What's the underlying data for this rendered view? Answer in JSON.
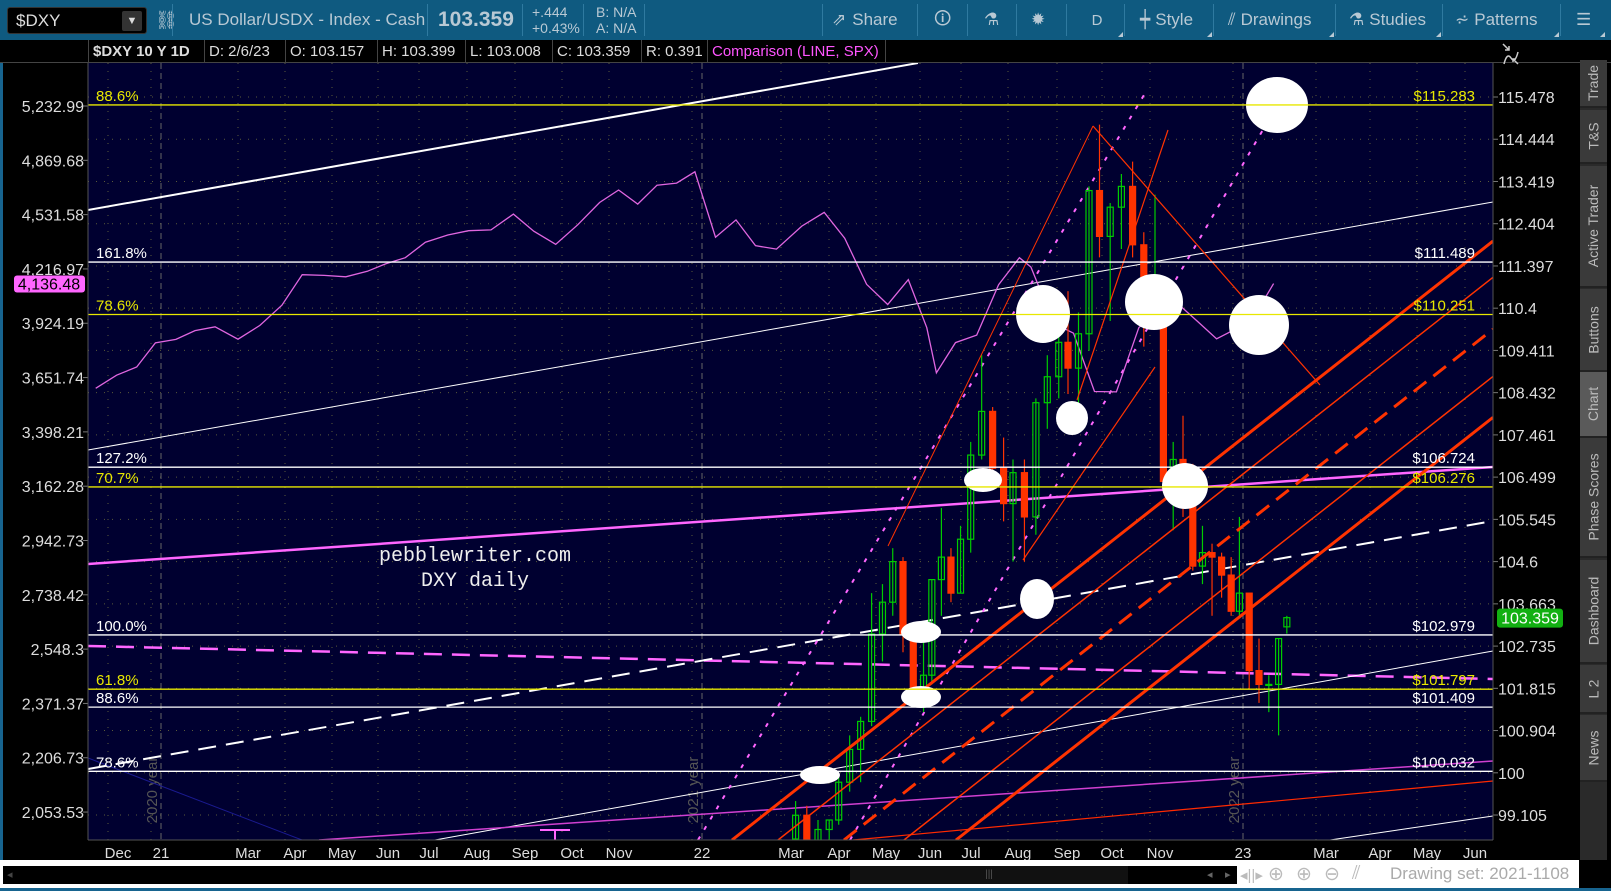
{
  "toolbar": {
    "symbol": "$DXY",
    "description": "US Dollar/USDX - Index - Cash",
    "last": "103.359",
    "change": "+.444",
    "change_pct": "+0.43%",
    "bid": "B: N/A",
    "ask": "A: N/A",
    "share": "Share",
    "period": "D",
    "style": "Style",
    "drawings": "Drawings",
    "studies": "Studies",
    "patterns": "Patterns"
  },
  "header": {
    "title": "$DXY 10 Y 1D",
    "date": "D: 2/6/23",
    "open": "O: 103.157",
    "high": "H: 103.399",
    "low": "L: 103.008",
    "close": "C: 103.359",
    "range": "R: 0.391",
    "comparison": "Comparison (LINE, SPX)"
  },
  "right_tabs": [
    "Trade",
    "T&S",
    "Active Trader",
    "Buttons",
    "Chart",
    "Phase Scores",
    "Dashboard",
    "L 2",
    "News"
  ],
  "selected_tab": "Chart",
  "bottom": {
    "drawing_set": "Drawing set: 2021-1108"
  },
  "colors": {
    "plot_bg": "#000030",
    "up": "#00cc00",
    "down": "#ff3300",
    "comparison": "#e066e0",
    "fib_yellow": "#e8e800",
    "fib_white": "#ffffff",
    "channel": "#ff3300",
    "last_price_badge": "#12b012",
    "comparison_badge": "#ff66ff"
  },
  "chart_data": {
    "type": "candlestick",
    "scale": "log",
    "grid": true,
    "annotation": [
      "pebblewriter.com",
      "DXY daily"
    ],
    "year_labels": [
      {
        "label": "2020 year",
        "date": "2021-01-01"
      },
      {
        "label": "2021 year",
        "date": "2022-01-01"
      },
      {
        "label": "2022 year",
        "date": "2023-01-01"
      }
    ],
    "x_ticks": [
      {
        "label": "Dec",
        "date": "2020-12"
      },
      {
        "label": "21",
        "date": "2021-01"
      },
      {
        "label": "Mar",
        "date": "2021-03"
      },
      {
        "label": "Apr",
        "date": "2021-04"
      },
      {
        "label": "May",
        "date": "2021-05"
      },
      {
        "label": "Jun",
        "date": "2021-06"
      },
      {
        "label": "Jul",
        "date": "2021-07"
      },
      {
        "label": "Aug",
        "date": "2021-08"
      },
      {
        "label": "Sep",
        "date": "2021-09"
      },
      {
        "label": "Oct",
        "date": "2021-10"
      },
      {
        "label": "Nov",
        "date": "2021-11"
      },
      {
        "label": "22",
        "date": "2022-01"
      },
      {
        "label": "Mar",
        "date": "2022-03"
      },
      {
        "label": "Apr",
        "date": "2022-04"
      },
      {
        "label": "May",
        "date": "2022-05"
      },
      {
        "label": "Jun",
        "date": "2022-06"
      },
      {
        "label": "Jul",
        "date": "2022-07"
      },
      {
        "label": "Aug",
        "date": "2022-08"
      },
      {
        "label": "Sep",
        "date": "2022-09"
      },
      {
        "label": "Oct",
        "date": "2022-10"
      },
      {
        "label": "Nov",
        "date": "2022-11"
      },
      {
        "label": "23",
        "date": "2023-01"
      },
      {
        "label": "Mar",
        "date": "2023-03"
      },
      {
        "label": "Apr",
        "date": "2023-04"
      },
      {
        "label": "May",
        "date": "2023-05"
      },
      {
        "label": "Jun",
        "date": "2023-06"
      }
    ],
    "right_axis_ticks": [
      "115.478",
      "114.444",
      "113.419",
      "112.404",
      "111.397",
      "110.4",
      "109.411",
      "108.432",
      "107.461",
      "106.499",
      "105.545",
      "104.6",
      "103.663",
      "102.735",
      "101.815",
      "100.904",
      "100",
      "99.105"
    ],
    "left_axis_ticks": [
      "5,232.99",
      "4,869.68",
      "4,531.58",
      "4,216.97",
      "3,924.19",
      "3,651.74",
      "3,398.21",
      "3,162.28",
      "2,942.73",
      "2,738.42",
      "2,548.3",
      "2,371.37",
      "2,206.73",
      "2,053.53"
    ],
    "last_price": "103.359",
    "comparison_last": "4,136.48",
    "fib_levels": [
      {
        "price": 115.283,
        "pct": "88.6%",
        "label": "$115.283",
        "color": "yellow"
      },
      {
        "price": 111.489,
        "pct": "161.8%",
        "label": "$111.489",
        "color": "white"
      },
      {
        "price": 110.251,
        "pct": "78.6%",
        "label": "$110.251",
        "color": "yellow"
      },
      {
        "price": 106.724,
        "pct": "127.2%",
        "label": "$106.724",
        "color": "white"
      },
      {
        "price": 106.276,
        "pct": "70.7%",
        "label": "$106.276",
        "color": "yellow"
      },
      {
        "price": 102.979,
        "pct": "100.0%",
        "label": "$102.979",
        "color": "white"
      },
      {
        "price": 101.797,
        "pct": "61.8%",
        "label": "$101.797",
        "color": "yellow"
      },
      {
        "price": 101.409,
        "pct": "88.6%",
        "label": "$101.409",
        "color": "white"
      },
      {
        "price": 100.032,
        "pct": "78.6%",
        "label": "$100.032",
        "color": "white"
      }
    ],
    "candles": [
      [
        "2022-03-07",
        98.6,
        99.4,
        98.2,
        99.1
      ],
      [
        "2022-03-14",
        99.1,
        99.3,
        97.7,
        98.2
      ],
      [
        "2022-03-21",
        98.2,
        99.0,
        98.1,
        98.8
      ],
      [
        "2022-03-28",
        98.8,
        99.0,
        97.7,
        99.0
      ],
      [
        "2022-04-04",
        99.0,
        100.0,
        98.9,
        99.8
      ],
      [
        "2022-04-11",
        99.8,
        100.8,
        99.6,
        100.5
      ],
      [
        "2022-04-18",
        100.5,
        101.2,
        99.8,
        101.1
      ],
      [
        "2022-04-25",
        101.1,
        103.9,
        101.0,
        103.0
      ],
      [
        "2022-05-02",
        103.0,
        104.1,
        102.4,
        103.7
      ],
      [
        "2022-05-09",
        103.7,
        104.9,
        103.4,
        104.6
      ],
      [
        "2022-05-16",
        104.6,
        104.7,
        102.6,
        103.0
      ],
      [
        "2022-05-23",
        103.0,
        103.1,
        101.6,
        101.7
      ],
      [
        "2022-05-30",
        101.7,
        102.9,
        101.3,
        102.1
      ],
      [
        "2022-06-06",
        102.1,
        104.2,
        101.9,
        104.2
      ],
      [
        "2022-06-13",
        104.2,
        105.8,
        103.4,
        104.7
      ],
      [
        "2022-06-20",
        104.7,
        104.9,
        103.7,
        103.9
      ],
      [
        "2022-06-27",
        103.9,
        105.4,
        103.9,
        105.1
      ],
      [
        "2022-07-04",
        105.1,
        107.3,
        104.8,
        107.0
      ],
      [
        "2022-07-11",
        107.0,
        109.3,
        106.9,
        108.0
      ],
      [
        "2022-07-18",
        108.0,
        108.1,
        106.3,
        106.7
      ],
      [
        "2022-07-25",
        106.7,
        107.4,
        105.5,
        105.9
      ],
      [
        "2022-08-01",
        105.9,
        106.9,
        104.6,
        106.6
      ],
      [
        "2022-08-08",
        106.6,
        106.9,
        104.6,
        105.6
      ],
      [
        "2022-08-15",
        105.6,
        108.3,
        105.2,
        108.2
      ],
      [
        "2022-08-22",
        108.2,
        109.3,
        107.6,
        108.8
      ],
      [
        "2022-08-29",
        108.8,
        110.0,
        108.3,
        109.6
      ],
      [
        "2022-09-05",
        109.6,
        110.8,
        108.4,
        109.0
      ],
      [
        "2022-09-12",
        109.0,
        110.3,
        107.6,
        109.8
      ],
      [
        "2022-09-19",
        109.8,
        113.3,
        109.4,
        113.2
      ],
      [
        "2022-09-26",
        113.2,
        114.8,
        111.6,
        112.1
      ],
      [
        "2022-10-03",
        112.1,
        112.9,
        110.1,
        112.8
      ],
      [
        "2022-10-10",
        112.8,
        113.6,
        111.8,
        113.3
      ],
      [
        "2022-10-17",
        113.3,
        113.9,
        111.6,
        111.9
      ],
      [
        "2022-10-24",
        111.9,
        112.2,
        109.5,
        110.7
      ],
      [
        "2022-10-31",
        110.7,
        113.1,
        110.3,
        110.8
      ],
      [
        "2022-11-07",
        110.8,
        111.0,
        106.3,
        106.4
      ],
      [
        "2022-11-14",
        106.4,
        107.3,
        105.3,
        106.9
      ],
      [
        "2022-11-21",
        106.9,
        107.9,
        105.6,
        106.0
      ],
      [
        "2022-11-28",
        106.0,
        106.8,
        104.4,
        104.5
      ],
      [
        "2022-12-05",
        104.5,
        105.4,
        104.1,
        104.8
      ],
      [
        "2022-12-12",
        104.8,
        105.0,
        103.4,
        104.7
      ],
      [
        "2022-12-19",
        104.7,
        104.8,
        103.8,
        104.3
      ],
      [
        "2022-12-26",
        104.3,
        104.7,
        103.4,
        103.5
      ],
      [
        "2023-01-02",
        103.5,
        105.6,
        103.4,
        103.9
      ],
      [
        "2023-01-09",
        103.9,
        103.9,
        101.8,
        102.2
      ],
      [
        "2023-01-16",
        102.2,
        102.9,
        101.5,
        101.9
      ],
      [
        "2023-01-23",
        101.9,
        102.1,
        101.3,
        101.9
      ],
      [
        "2023-01-30",
        101.9,
        102.9,
        100.8,
        102.9
      ],
      [
        "2023-02-06",
        103.157,
        103.399,
        103.008,
        103.359
      ]
    ],
    "comparison_series": {
      "name": "SPX",
      "points": [
        [
          "2020-11-23",
          3600
        ],
        [
          "2020-12-07",
          3663
        ],
        [
          "2020-12-21",
          3703
        ],
        [
          "2021-01-04",
          3824
        ],
        [
          "2021-01-18",
          3841
        ],
        [
          "2021-02-01",
          3886
        ],
        [
          "2021-02-15",
          3906
        ],
        [
          "2021-03-01",
          3842
        ],
        [
          "2021-03-15",
          3913
        ],
        [
          "2021-03-29",
          4019
        ],
        [
          "2021-04-12",
          4185
        ],
        [
          "2021-04-26",
          4181
        ],
        [
          "2021-05-10",
          4173
        ],
        [
          "2021-05-24",
          4204
        ],
        [
          "2021-06-07",
          4247
        ],
        [
          "2021-06-21",
          4280
        ],
        [
          "2021-07-05",
          4369
        ],
        [
          "2021-07-19",
          4411
        ],
        [
          "2021-08-02",
          4436
        ],
        [
          "2021-08-16",
          4441
        ],
        [
          "2021-08-30",
          4535
        ],
        [
          "2021-09-13",
          4433
        ],
        [
          "2021-09-27",
          4357
        ],
        [
          "2021-10-11",
          4471
        ],
        [
          "2021-10-25",
          4605
        ],
        [
          "2021-11-08",
          4682
        ],
        [
          "2021-11-22",
          4595
        ],
        [
          "2021-12-06",
          4712
        ],
        [
          "2021-12-20",
          4725
        ],
        [
          "2022-01-03",
          4796
        ],
        [
          "2022-01-17",
          4398
        ],
        [
          "2022-01-31",
          4500
        ],
        [
          "2022-02-14",
          4349
        ],
        [
          "2022-02-28",
          4329
        ],
        [
          "2022-03-14",
          4463
        ],
        [
          "2022-03-28",
          4545
        ],
        [
          "2022-04-11",
          4392
        ],
        [
          "2022-04-25",
          4132
        ],
        [
          "2022-05-09",
          4023
        ],
        [
          "2022-05-23",
          4158
        ],
        [
          "2022-06-06",
          3901
        ],
        [
          "2022-06-13",
          3675
        ],
        [
          "2022-06-27",
          3825
        ],
        [
          "2022-07-11",
          3863
        ],
        [
          "2022-07-25",
          4130
        ],
        [
          "2022-08-08",
          4280
        ],
        [
          "2022-08-15",
          4228
        ],
        [
          "2022-08-29",
          3924
        ],
        [
          "2022-09-12",
          3873
        ],
        [
          "2022-09-26",
          3585
        ],
        [
          "2022-10-10",
          3583
        ],
        [
          "2022-10-24",
          3901
        ],
        [
          "2022-11-07",
          3993
        ],
        [
          "2022-11-21",
          4026
        ],
        [
          "2022-12-05",
          3934
        ],
        [
          "2022-12-19",
          3844
        ],
        [
          "2023-01-03",
          3895
        ],
        [
          "2023-01-17",
          3972
        ],
        [
          "2023-01-30",
          4136
        ]
      ]
    }
  }
}
